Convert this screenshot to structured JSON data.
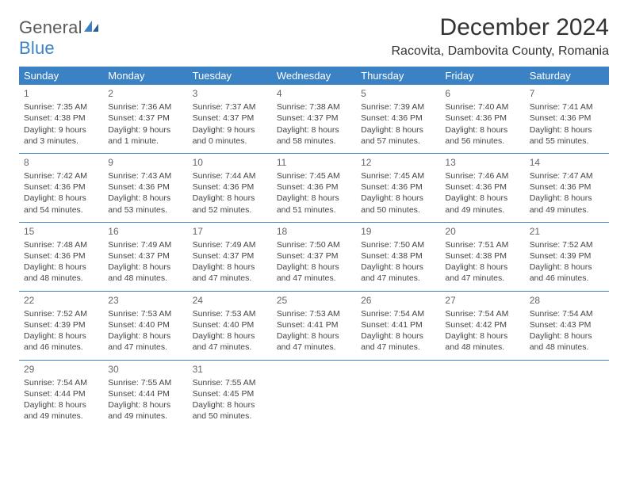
{
  "brand": {
    "general": "General",
    "blue": "Blue"
  },
  "title": "December 2024",
  "location": "Racovita, Dambovita County, Romania",
  "colors": {
    "header_bg": "#3b82c4",
    "header_fg": "#ffffff",
    "rule": "#3b82c4",
    "text": "#444444",
    "title": "#333333"
  },
  "font": {
    "family": "Arial",
    "day_size_pt": 8,
    "header_size_pt": 10,
    "title_size_pt": 22
  },
  "weekdays": [
    "Sunday",
    "Monday",
    "Tuesday",
    "Wednesday",
    "Thursday",
    "Friday",
    "Saturday"
  ],
  "weeks": [
    [
      {
        "n": "1",
        "sr": "Sunrise: 7:35 AM",
        "ss": "Sunset: 4:38 PM",
        "d1": "Daylight: 9 hours",
        "d2": "and 3 minutes."
      },
      {
        "n": "2",
        "sr": "Sunrise: 7:36 AM",
        "ss": "Sunset: 4:37 PM",
        "d1": "Daylight: 9 hours",
        "d2": "and 1 minute."
      },
      {
        "n": "3",
        "sr": "Sunrise: 7:37 AM",
        "ss": "Sunset: 4:37 PM",
        "d1": "Daylight: 9 hours",
        "d2": "and 0 minutes."
      },
      {
        "n": "4",
        "sr": "Sunrise: 7:38 AM",
        "ss": "Sunset: 4:37 PM",
        "d1": "Daylight: 8 hours",
        "d2": "and 58 minutes."
      },
      {
        "n": "5",
        "sr": "Sunrise: 7:39 AM",
        "ss": "Sunset: 4:36 PM",
        "d1": "Daylight: 8 hours",
        "d2": "and 57 minutes."
      },
      {
        "n": "6",
        "sr": "Sunrise: 7:40 AM",
        "ss": "Sunset: 4:36 PM",
        "d1": "Daylight: 8 hours",
        "d2": "and 56 minutes."
      },
      {
        "n": "7",
        "sr": "Sunrise: 7:41 AM",
        "ss": "Sunset: 4:36 PM",
        "d1": "Daylight: 8 hours",
        "d2": "and 55 minutes."
      }
    ],
    [
      {
        "n": "8",
        "sr": "Sunrise: 7:42 AM",
        "ss": "Sunset: 4:36 PM",
        "d1": "Daylight: 8 hours",
        "d2": "and 54 minutes."
      },
      {
        "n": "9",
        "sr": "Sunrise: 7:43 AM",
        "ss": "Sunset: 4:36 PM",
        "d1": "Daylight: 8 hours",
        "d2": "and 53 minutes."
      },
      {
        "n": "10",
        "sr": "Sunrise: 7:44 AM",
        "ss": "Sunset: 4:36 PM",
        "d1": "Daylight: 8 hours",
        "d2": "and 52 minutes."
      },
      {
        "n": "11",
        "sr": "Sunrise: 7:45 AM",
        "ss": "Sunset: 4:36 PM",
        "d1": "Daylight: 8 hours",
        "d2": "and 51 minutes."
      },
      {
        "n": "12",
        "sr": "Sunrise: 7:45 AM",
        "ss": "Sunset: 4:36 PM",
        "d1": "Daylight: 8 hours",
        "d2": "and 50 minutes."
      },
      {
        "n": "13",
        "sr": "Sunrise: 7:46 AM",
        "ss": "Sunset: 4:36 PM",
        "d1": "Daylight: 8 hours",
        "d2": "and 49 minutes."
      },
      {
        "n": "14",
        "sr": "Sunrise: 7:47 AM",
        "ss": "Sunset: 4:36 PM",
        "d1": "Daylight: 8 hours",
        "d2": "and 49 minutes."
      }
    ],
    [
      {
        "n": "15",
        "sr": "Sunrise: 7:48 AM",
        "ss": "Sunset: 4:36 PM",
        "d1": "Daylight: 8 hours",
        "d2": "and 48 minutes."
      },
      {
        "n": "16",
        "sr": "Sunrise: 7:49 AM",
        "ss": "Sunset: 4:37 PM",
        "d1": "Daylight: 8 hours",
        "d2": "and 48 minutes."
      },
      {
        "n": "17",
        "sr": "Sunrise: 7:49 AM",
        "ss": "Sunset: 4:37 PM",
        "d1": "Daylight: 8 hours",
        "d2": "and 47 minutes."
      },
      {
        "n": "18",
        "sr": "Sunrise: 7:50 AM",
        "ss": "Sunset: 4:37 PM",
        "d1": "Daylight: 8 hours",
        "d2": "and 47 minutes."
      },
      {
        "n": "19",
        "sr": "Sunrise: 7:50 AM",
        "ss": "Sunset: 4:38 PM",
        "d1": "Daylight: 8 hours",
        "d2": "and 47 minutes."
      },
      {
        "n": "20",
        "sr": "Sunrise: 7:51 AM",
        "ss": "Sunset: 4:38 PM",
        "d1": "Daylight: 8 hours",
        "d2": "and 47 minutes."
      },
      {
        "n": "21",
        "sr": "Sunrise: 7:52 AM",
        "ss": "Sunset: 4:39 PM",
        "d1": "Daylight: 8 hours",
        "d2": "and 46 minutes."
      }
    ],
    [
      {
        "n": "22",
        "sr": "Sunrise: 7:52 AM",
        "ss": "Sunset: 4:39 PM",
        "d1": "Daylight: 8 hours",
        "d2": "and 46 minutes."
      },
      {
        "n": "23",
        "sr": "Sunrise: 7:53 AM",
        "ss": "Sunset: 4:40 PM",
        "d1": "Daylight: 8 hours",
        "d2": "and 47 minutes."
      },
      {
        "n": "24",
        "sr": "Sunrise: 7:53 AM",
        "ss": "Sunset: 4:40 PM",
        "d1": "Daylight: 8 hours",
        "d2": "and 47 minutes."
      },
      {
        "n": "25",
        "sr": "Sunrise: 7:53 AM",
        "ss": "Sunset: 4:41 PM",
        "d1": "Daylight: 8 hours",
        "d2": "and 47 minutes."
      },
      {
        "n": "26",
        "sr": "Sunrise: 7:54 AM",
        "ss": "Sunset: 4:41 PM",
        "d1": "Daylight: 8 hours",
        "d2": "and 47 minutes."
      },
      {
        "n": "27",
        "sr": "Sunrise: 7:54 AM",
        "ss": "Sunset: 4:42 PM",
        "d1": "Daylight: 8 hours",
        "d2": "and 48 minutes."
      },
      {
        "n": "28",
        "sr": "Sunrise: 7:54 AM",
        "ss": "Sunset: 4:43 PM",
        "d1": "Daylight: 8 hours",
        "d2": "and 48 minutes."
      }
    ],
    [
      {
        "n": "29",
        "sr": "Sunrise: 7:54 AM",
        "ss": "Sunset: 4:44 PM",
        "d1": "Daylight: 8 hours",
        "d2": "and 49 minutes."
      },
      {
        "n": "30",
        "sr": "Sunrise: 7:55 AM",
        "ss": "Sunset: 4:44 PM",
        "d1": "Daylight: 8 hours",
        "d2": "and 49 minutes."
      },
      {
        "n": "31",
        "sr": "Sunrise: 7:55 AM",
        "ss": "Sunset: 4:45 PM",
        "d1": "Daylight: 8 hours",
        "d2": "and 50 minutes."
      },
      null,
      null,
      null,
      null
    ]
  ]
}
